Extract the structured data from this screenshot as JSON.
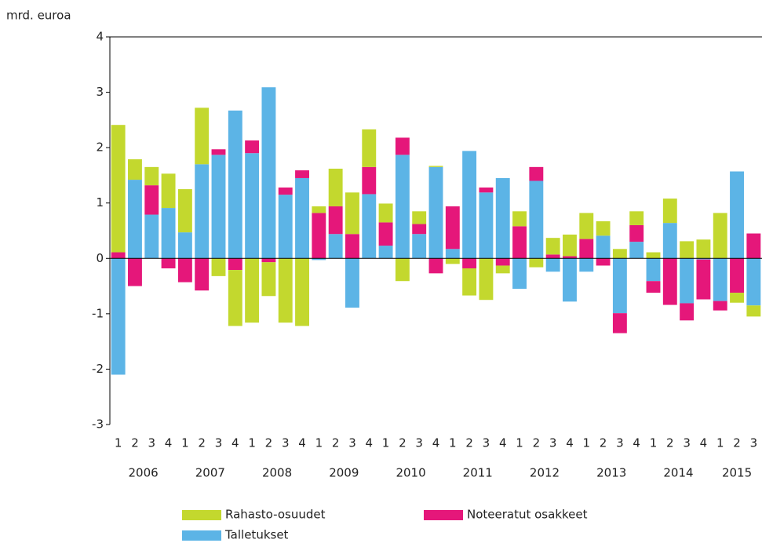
{
  "chart_data": {
    "type": "bar",
    "stacked": true,
    "y_label": "mrd. euroa",
    "categories": [
      "1",
      "2",
      "3",
      "4",
      "1",
      "2",
      "3",
      "4",
      "1",
      "2",
      "3",
      "4",
      "1",
      "2",
      "3",
      "4",
      "1",
      "2",
      "3",
      "4",
      "1",
      "2",
      "3",
      "4",
      "1",
      "2",
      "3",
      "4",
      "1",
      "2",
      "3",
      "4",
      "1",
      "2",
      "3",
      "4",
      "1",
      "2",
      "3"
    ],
    "years": [
      "2006",
      "2007",
      "2008",
      "2009",
      "2010",
      "2011",
      "2012",
      "2013",
      "2014",
      "2015"
    ],
    "series": [
      {
        "name": "Rahasto-osuudet",
        "color": "#c3d82e",
        "values": [
          2.3,
          0.37,
          0.33,
          0.62,
          0.78,
          1.02,
          -0.32,
          -1.01,
          -1.16,
          -0.61,
          -1.16,
          -1.22,
          0.12,
          0.68,
          0.75,
          0.68,
          0.34,
          -0.41,
          0.23,
          0.02,
          -0.1,
          -0.49,
          -0.75,
          -0.14,
          0.27,
          -0.16,
          0.3,
          0.39,
          0.47,
          0.26,
          0.17,
          0.25,
          0.11,
          0.44,
          0.31,
          0.34,
          0.82,
          -0.18,
          -0.2
        ]
      },
      {
        "name": "Noteeratut osakkeet",
        "color": "#e5177a",
        "values": [
          0.11,
          -0.5,
          0.53,
          -0.18,
          -0.43,
          -0.58,
          0.1,
          -0.21,
          0.23,
          -0.07,
          0.13,
          0.14,
          0.82,
          0.5,
          0.44,
          0.49,
          0.42,
          0.31,
          0.18,
          -0.27,
          0.77,
          -0.18,
          0.09,
          -0.13,
          0.58,
          0.25,
          0.07,
          0.04,
          0.35,
          -0.13,
          -0.36,
          0.3,
          -0.21,
          -0.84,
          -0.31,
          -0.72,
          -0.17,
          -0.62,
          0.45
        ]
      },
      {
        "name": "Talletukset",
        "color": "#5cb4e6",
        "values": [
          -2.1,
          1.42,
          0.79,
          0.91,
          0.47,
          1.7,
          1.87,
          2.67,
          1.9,
          3.09,
          1.15,
          1.45,
          -0.03,
          0.44,
          -0.89,
          1.16,
          0.23,
          1.87,
          0.44,
          1.65,
          0.17,
          1.94,
          1.19,
          1.45,
          -0.55,
          1.4,
          -0.24,
          -0.78,
          -0.24,
          0.41,
          -0.99,
          0.3,
          -0.41,
          0.64,
          -0.81,
          -0.02,
          -0.77,
          1.57,
          -0.85
        ]
      }
    ],
    "ylim": [
      -3,
      4
    ],
    "yticks": [
      -3,
      -2,
      -1,
      0,
      1,
      2,
      3,
      4
    ]
  }
}
